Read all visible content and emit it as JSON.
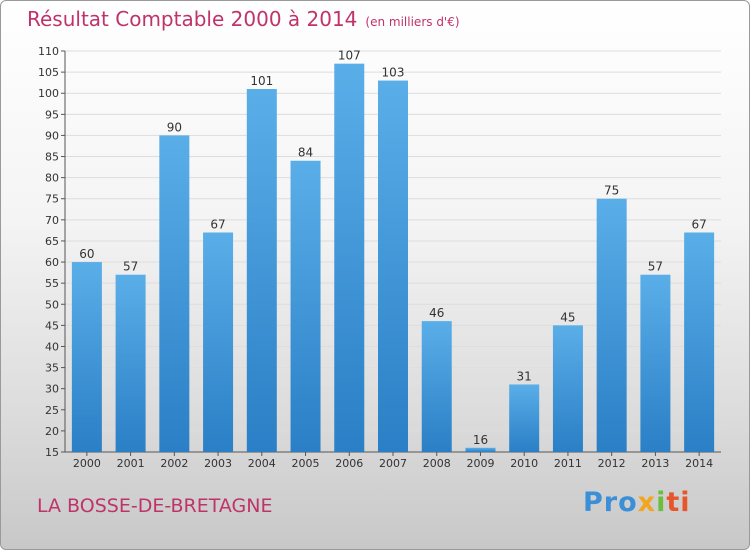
{
  "header": {
    "title": "Résultat Comptable 2000 à 2014",
    "units": "(en milliers d'€)"
  },
  "footer": {
    "place_name": "LA BOSSE-DE-BRETAGNE",
    "logo": {
      "p1": "Pro",
      "p2": "x",
      "p3": "i",
      "p4": "ti"
    }
  },
  "colors": {
    "title": "#c0336a",
    "bar_top": "#5aaee8",
    "bar_bottom": "#2a7fc6",
    "grid": "#dddddd"
  },
  "chart_data": {
    "type": "bar",
    "title": "Résultat Comptable 2000 à 2014",
    "subtitle": "(en milliers d'€)",
    "xlabel": "",
    "ylabel": "",
    "categories": [
      "2000",
      "2001",
      "2002",
      "2003",
      "2004",
      "2005",
      "2006",
      "2007",
      "2008",
      "2009",
      "2010",
      "2011",
      "2012",
      "2013",
      "2014"
    ],
    "values": [
      60,
      57,
      90,
      67,
      101,
      84,
      107,
      103,
      46,
      16,
      31,
      45,
      75,
      57,
      67
    ],
    "ylim": [
      15,
      110
    ],
    "yticks": [
      15,
      20,
      25,
      30,
      35,
      40,
      45,
      50,
      55,
      60,
      65,
      70,
      75,
      80,
      85,
      90,
      95,
      100,
      105,
      110
    ],
    "grid": true
  }
}
